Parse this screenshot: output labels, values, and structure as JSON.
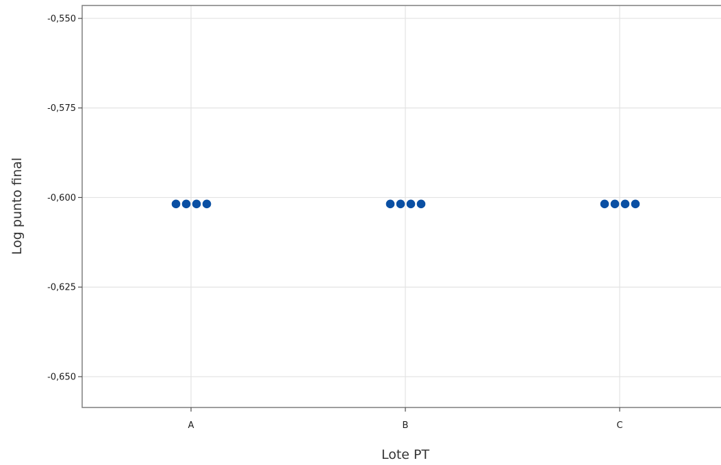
{
  "chart_data": {
    "type": "scatter",
    "title": "",
    "xlabel": "Lote PT",
    "ylabel": "Log punto final",
    "categories": [
      "A",
      "B",
      "C"
    ],
    "ylim": [
      -0.6586,
      -0.5464
    ],
    "yticks": [
      -0.55,
      -0.575,
      -0.6,
      -0.625,
      -0.65
    ],
    "ytick_labels": [
      "-0,550",
      "-0,575",
      "-0,600",
      "-0,625",
      "-0,650"
    ],
    "grid": true,
    "legend": "none",
    "marker_color": "#0a4fa3",
    "points": [
      {
        "category": "A",
        "y": -0.6018
      },
      {
        "category": "A",
        "y": -0.6018
      },
      {
        "category": "A",
        "y": -0.6018
      },
      {
        "category": "A",
        "y": -0.6018
      },
      {
        "category": "B",
        "y": -0.6018
      },
      {
        "category": "B",
        "y": -0.6018
      },
      {
        "category": "B",
        "y": -0.6018
      },
      {
        "category": "B",
        "y": -0.6018
      },
      {
        "category": "C",
        "y": -0.6018
      },
      {
        "category": "C",
        "y": -0.6018
      },
      {
        "category": "C",
        "y": -0.6018
      },
      {
        "category": "C",
        "y": -0.6018
      }
    ]
  }
}
